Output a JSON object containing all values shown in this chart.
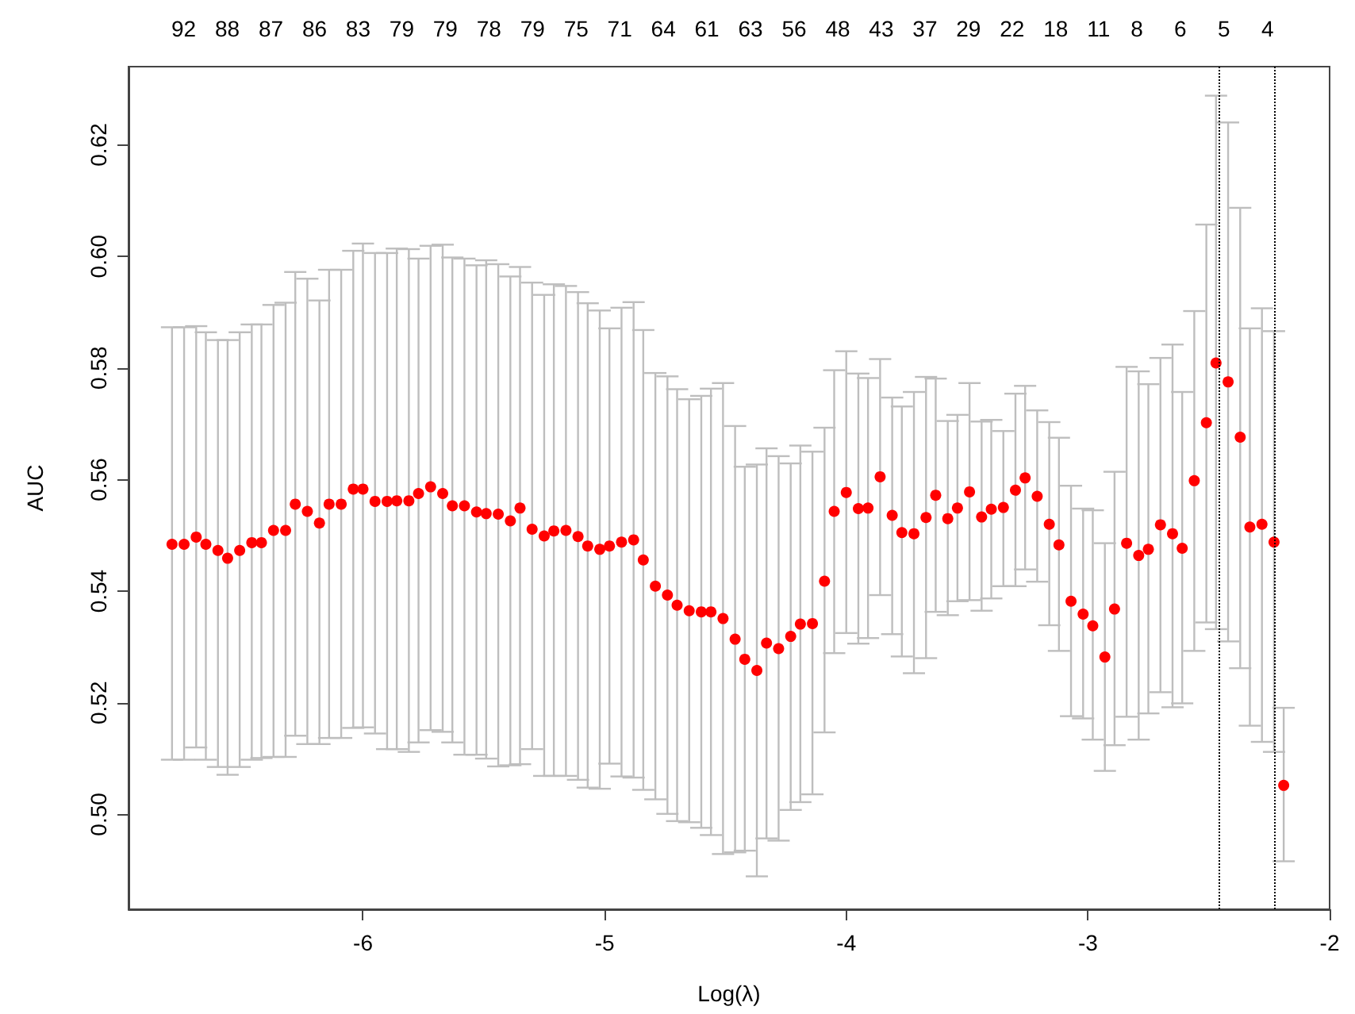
{
  "chart_data": {
    "type": "scatter",
    "xlabel": "Log(λ)",
    "ylabel": "AUC",
    "marker": "circle",
    "grid": false,
    "legend": false,
    "xlim": [
      -6.97,
      -2
    ],
    "xticks": [
      -6,
      -5,
      -4,
      -3,
      -2
    ],
    "ylim": [
      0.483,
      0.634
    ],
    "yticks": [
      {
        "value": 0.5,
        "label": "0.50"
      },
      {
        "value": 0.52,
        "label": "0.52"
      },
      {
        "value": 0.54,
        "label": "0.54"
      },
      {
        "value": 0.56,
        "label": "0.56"
      },
      {
        "value": 0.58,
        "label": "0.58"
      },
      {
        "value": 0.6,
        "label": "0.60"
      },
      {
        "value": 0.62,
        "label": "0.62"
      }
    ],
    "annotations": [
      "92",
      "88",
      "87",
      "86",
      "83",
      "79",
      "79",
      "78",
      "79",
      "75",
      "71",
      "64",
      "61",
      "63",
      "56",
      "48",
      "43",
      "37",
      "29",
      "22",
      "18",
      "11",
      "8",
      "6",
      "5",
      "4"
    ],
    "x": [
      -6.79,
      -6.74,
      -6.69,
      -6.65,
      -6.6,
      -6.56,
      -6.51,
      -6.46,
      -6.42,
      -6.37,
      -6.32,
      -6.28,
      -6.23,
      -6.18,
      -6.14,
      -6.09,
      -6.04,
      -6.0,
      -5.95,
      -5.9,
      -5.86,
      -5.81,
      -5.77,
      -5.72,
      -5.67,
      -5.63,
      -5.58,
      -5.53,
      -5.49,
      -5.44,
      -5.39,
      -5.35,
      -5.3,
      -5.25,
      -5.21,
      -5.16,
      -5.11,
      -5.07,
      -5.02,
      -4.98,
      -4.93,
      -4.88,
      -4.84,
      -4.79,
      -4.74,
      -4.7,
      -4.65,
      -4.6,
      -4.56,
      -4.51,
      -4.46,
      -4.42,
      -4.37,
      -4.33,
      -4.28,
      -4.23,
      -4.19,
      -4.14,
      -4.09,
      -4.05,
      -4.0,
      -3.95,
      -3.91,
      -3.86,
      -3.81,
      -3.77,
      -3.72,
      -3.67,
      -3.63,
      -3.58,
      -3.54,
      -3.49,
      -3.44,
      -3.4,
      -3.35,
      -3.3,
      -3.26,
      -3.21,
      -3.16,
      -3.12,
      -3.07,
      -3.02,
      -2.98,
      -2.93,
      -2.89,
      -2.84,
      -2.79,
      -2.75,
      -2.7,
      -2.65,
      -2.61,
      -2.56,
      -2.51,
      -2.47,
      -2.42,
      -2.37,
      -2.33,
      -2.28,
      -2.23,
      -2.19
    ],
    "series": [
      {
        "color": "#ff0000",
        "values": [
          0.5484,
          0.5484,
          0.5497,
          0.5484,
          0.5473,
          0.5459,
          0.5473,
          0.5487,
          0.5487,
          0.5509,
          0.5509,
          0.5556,
          0.5543,
          0.5522,
          0.5556,
          0.5556,
          0.5583,
          0.5583,
          0.5561,
          0.5561,
          0.5562,
          0.5562,
          0.5575,
          0.5587,
          0.5575,
          0.5553,
          0.5553,
          0.5542,
          0.5539,
          0.5538,
          0.5526,
          0.5549,
          0.5511,
          0.5499,
          0.5508,
          0.5509,
          0.5498,
          0.5481,
          0.5475,
          0.5481,
          0.5488,
          0.5492,
          0.5456,
          0.5409,
          0.5393,
          0.5375,
          0.5365,
          0.5363,
          0.5363,
          0.5351,
          0.5314,
          0.5278,
          0.5258,
          0.5307,
          0.5297,
          0.5319,
          0.5341,
          0.5342,
          0.5418,
          0.5543,
          0.5577,
          0.5548,
          0.5549,
          0.5605,
          0.5536,
          0.5505,
          0.5503,
          0.5532,
          0.5572,
          0.553,
          0.5549,
          0.5578,
          0.5533,
          0.5547,
          0.555,
          0.5581,
          0.5603,
          0.557,
          0.552,
          0.5483,
          0.5382,
          0.5359,
          0.5338,
          0.5282,
          0.5368,
          0.5486,
          0.5464,
          0.5475,
          0.5519,
          0.5503,
          0.5477,
          0.5598,
          0.5702,
          0.5809,
          0.5775,
          0.5676,
          0.5515,
          0.552,
          0.5488,
          0.5052
        ],
        "errors": [
          [
            0.5098,
            0.5873
          ],
          [
            0.5098,
            0.5873
          ],
          [
            0.512,
            0.5875
          ],
          [
            0.5098,
            0.5864
          ],
          [
            0.5085,
            0.585
          ],
          [
            0.5071,
            0.585
          ],
          [
            0.5085,
            0.5864
          ],
          [
            0.5098,
            0.5878
          ],
          [
            0.5101,
            0.5878
          ],
          [
            0.5103,
            0.5913
          ],
          [
            0.5103,
            0.5917
          ],
          [
            0.5141,
            0.5972
          ],
          [
            0.5126,
            0.596
          ],
          [
            0.5126,
            0.5921
          ],
          [
            0.5137,
            0.5976
          ],
          [
            0.5137,
            0.5976
          ],
          [
            0.5155,
            0.601
          ],
          [
            0.5156,
            0.6023
          ],
          [
            0.5145,
            0.6006
          ],
          [
            0.5117,
            0.6006
          ],
          [
            0.5117,
            0.6014
          ],
          [
            0.5112,
            0.6013
          ],
          [
            0.5129,
            0.5996
          ],
          [
            0.5151,
            0.6019
          ],
          [
            0.5148,
            0.6021
          ],
          [
            0.5129,
            0.5998
          ],
          [
            0.5107,
            0.5996
          ],
          [
            0.5107,
            0.5984
          ],
          [
            0.51,
            0.5993
          ],
          [
            0.5086,
            0.5986
          ],
          [
            0.5088,
            0.5964
          ],
          [
            0.509,
            0.5981
          ],
          [
            0.5117,
            0.5953
          ],
          [
            0.5069,
            0.5931
          ],
          [
            0.5069,
            0.595
          ],
          [
            0.5069,
            0.5947
          ],
          [
            0.5062,
            0.5936
          ],
          [
            0.5048,
            0.5916
          ],
          [
            0.5046,
            0.5903
          ],
          [
            0.5091,
            0.5871
          ],
          [
            0.5068,
            0.5908
          ],
          [
            0.5066,
            0.5918
          ],
          [
            0.5044,
            0.5868
          ],
          [
            0.5027,
            0.5791
          ],
          [
            0.5001,
            0.5785
          ],
          [
            0.4988,
            0.5762
          ],
          [
            0.4986,
            0.5744
          ],
          [
            0.4976,
            0.575
          ],
          [
            0.4963,
            0.5763
          ],
          [
            0.4929,
            0.5773
          ],
          [
            0.4932,
            0.5696
          ],
          [
            0.4935,
            0.5623
          ],
          [
            0.4889,
            0.5627
          ],
          [
            0.4957,
            0.5656
          ],
          [
            0.4953,
            0.5642
          ],
          [
            0.5008,
            0.5629
          ],
          [
            0.5022,
            0.5661
          ],
          [
            0.5036,
            0.565
          ],
          [
            0.5147,
            0.5693
          ],
          [
            0.5289,
            0.5796
          ],
          [
            0.5325,
            0.583
          ],
          [
            0.5306,
            0.579
          ],
          [
            0.5316,
            0.5782
          ],
          [
            0.5393,
            0.5816
          ],
          [
            0.5323,
            0.5747
          ],
          [
            0.5283,
            0.5731
          ],
          [
            0.5253,
            0.5757
          ],
          [
            0.528,
            0.5784
          ],
          [
            0.5363,
            0.5781
          ],
          [
            0.5357,
            0.5705
          ],
          [
            0.5382,
            0.5716
          ],
          [
            0.5384,
            0.5773
          ],
          [
            0.5365,
            0.5704
          ],
          [
            0.5387,
            0.5707
          ],
          [
            0.5409,
            0.5687
          ],
          [
            0.5409,
            0.5754
          ],
          [
            0.5439,
            0.5768
          ],
          [
            0.5417,
            0.5724
          ],
          [
            0.5339,
            0.5703
          ],
          [
            0.5293,
            0.5675
          ],
          [
            0.5176,
            0.5589
          ],
          [
            0.5172,
            0.5548
          ],
          [
            0.5134,
            0.5545
          ],
          [
            0.5078,
            0.5486
          ],
          [
            0.5124,
            0.5614
          ],
          [
            0.5175,
            0.5802
          ],
          [
            0.5134,
            0.5794
          ],
          [
            0.5181,
            0.5771
          ],
          [
            0.5219,
            0.5818
          ],
          [
            0.5192,
            0.5842
          ],
          [
            0.5199,
            0.5757
          ],
          [
            0.5293,
            0.5902
          ],
          [
            0.5344,
            0.6057
          ],
          [
            0.5332,
            0.6288
          ],
          [
            0.531,
            0.624
          ],
          [
            0.5262,
            0.6087
          ],
          [
            0.5159,
            0.5871
          ],
          [
            0.513,
            0.5907
          ],
          [
            0.5112,
            0.5866
          ],
          [
            0.4916,
            0.5191
          ]
        ]
      }
    ],
    "ref_lines": [
      {
        "axis": "x",
        "value": -2.46,
        "line_style": "dotted",
        "color": "#000000"
      },
      {
        "axis": "x",
        "value": -2.23,
        "line_style": "dotted",
        "color": "#000000"
      }
    ]
  }
}
